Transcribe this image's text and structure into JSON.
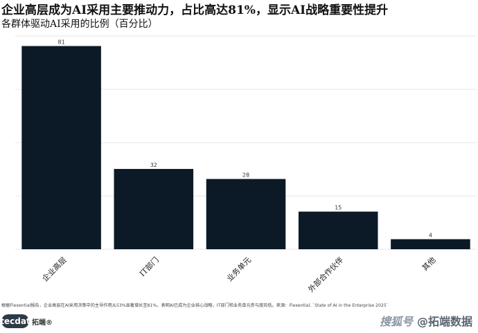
{
  "header": {
    "title": "企业高层成为AI采用主要推动力，占比高达81%，显示AI战略重要性提升",
    "subtitle": "各群体驱动AI采用的比例（百分比）"
  },
  "chart_data": {
    "type": "bar",
    "categories": [
      "企业高层",
      "IT部门",
      "业务单元",
      "外部合作伙伴",
      "其他"
    ],
    "values": [
      81,
      32,
      28,
      15,
      4
    ],
    "title": "企业高层成为AI采用主要推动力，占比高达81%，显示AI战略重要性提升",
    "subtitle": "各群体驱动AI采用的比例（百分比）",
    "xlabel": "",
    "ylabel": "",
    "ylim": [
      0,
      85
    ],
    "grid": true,
    "bar_color": "#0b1a26",
    "data_labels": true
  },
  "footer": {
    "note": "根据Flexential报告，企业高层在AI采用决策中的主导作用从53%显著增长至81%，表明AI已成为企业核心战略，IT部门和业务单元参与度较低。来源：Flexential, `State of AI in the Enterprise 2025`",
    "logo_text": "tecdat",
    "logo_cn": "拓端®",
    "watermark_brand": "搜狐号",
    "watermark_text": "@拓端数据"
  }
}
